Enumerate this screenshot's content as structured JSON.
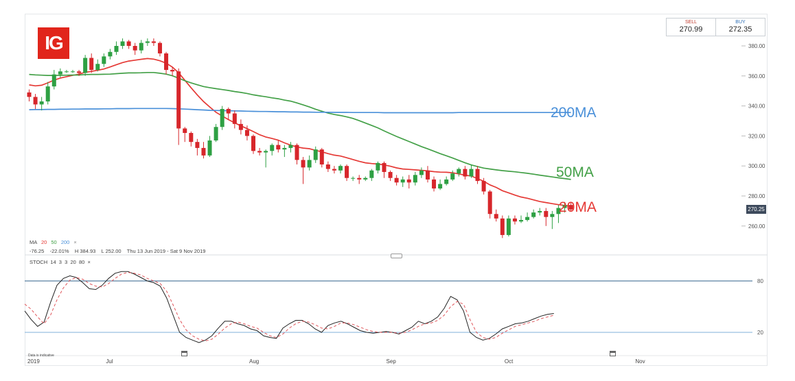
{
  "logo": {
    "text": "IG",
    "brand_color": "#e1251b"
  },
  "quote": {
    "sell_label": "SELL",
    "sell_value": "270.99",
    "buy_label": "BUY",
    "buy_value": "272.35",
    "sell_color": "#c0392b",
    "buy_color": "#2e6fb5"
  },
  "info": {
    "ma_prefix": "MA",
    "ma_periods": [
      "20",
      "50",
      "200"
    ],
    "ma_colors": [
      "#e53935",
      "#43a047",
      "#4a90d9"
    ],
    "close_icon": "close-icon",
    "stats": "-76.25    -22.01%    H 384.93    L 252.00    Thu 13 Jun 2019 - Sat 9 Nov 2019",
    "stoch_label": "STOCH  14  3  3  20  80  ×",
    "disclaimer": "Data is indicative"
  },
  "chart_data": [
    {
      "type": "candlestick",
      "title": "",
      "y_ticks": [
        "380.00",
        "360.00",
        "340.00",
        "320.00",
        "300.00",
        "280.00",
        "260.00"
      ],
      "y_tick_values": [
        380,
        360,
        340,
        320,
        300,
        280,
        260
      ],
      "ylim": [
        250,
        387
      ],
      "current_price": "270.25",
      "x_labels": [
        {
          "label": "2019",
          "index": 0
        },
        {
          "label": "Jul",
          "index": 13
        },
        {
          "label": "Aug",
          "index": 36
        },
        {
          "label": "Sep",
          "index": 58
        },
        {
          "label": "Oct",
          "index": 77
        },
        {
          "label": "Nov",
          "index": 98
        }
      ],
      "candles": [
        [
          349,
          346,
          351,
          343
        ],
        [
          346,
          341,
          348,
          338
        ],
        [
          341,
          343,
          346,
          337
        ],
        [
          343,
          353,
          356,
          341
        ],
        [
          353,
          361,
          364,
          351
        ],
        [
          361,
          363,
          365,
          359
        ],
        [
          363,
          363,
          364,
          362
        ],
        [
          363,
          363,
          364,
          362
        ],
        [
          363,
          362,
          364,
          360
        ],
        [
          362,
          372,
          374,
          360
        ],
        [
          372,
          364,
          375,
          362
        ],
        [
          364,
          368,
          371,
          363
        ],
        [
          368,
          373,
          375,
          366
        ],
        [
          373,
          376,
          378,
          371
        ],
        [
          376,
          380,
          383,
          374
        ],
        [
          380,
          383,
          385,
          378
        ],
        [
          383,
          380,
          384,
          378
        ],
        [
          380,
          377,
          382,
          374
        ],
        [
          377,
          382,
          384,
          375
        ],
        [
          382,
          383,
          385,
          380
        ],
        [
          383,
          382,
          385,
          380
        ],
        [
          382,
          375,
          383,
          373
        ],
        [
          375,
          364,
          376,
          361
        ],
        [
          364,
          363,
          366,
          360
        ],
        [
          363,
          325,
          365,
          314
        ],
        [
          325,
          322,
          326,
          316
        ],
        [
          322,
          316,
          323,
          313
        ],
        [
          316,
          312,
          318,
          307
        ],
        [
          312,
          307,
          316,
          305
        ],
        [
          307,
          317,
          320,
          306
        ],
        [
          317,
          326,
          328,
          316
        ],
        [
          326,
          338,
          340,
          324
        ],
        [
          338,
          335,
          339,
          331
        ],
        [
          335,
          328,
          337,
          325
        ],
        [
          328,
          324,
          331,
          321
        ],
        [
          324,
          320,
          327,
          317
        ],
        [
          320,
          310,
          321,
          308
        ],
        [
          310,
          309,
          312,
          307
        ],
        [
          309,
          310,
          311,
          299
        ],
        [
          310,
          314,
          315,
          307
        ],
        [
          314,
          311,
          317,
          309
        ],
        [
          311,
          312,
          314,
          306
        ],
        [
          312,
          314,
          316,
          309
        ],
        [
          314,
          304,
          315,
          301
        ],
        [
          304,
          299,
          306,
          288
        ],
        [
          299,
          304,
          307,
          297
        ],
        [
          304,
          311,
          313,
          302
        ],
        [
          311,
          301,
          312,
          299
        ],
        [
          301,
          298,
          303,
          296
        ],
        [
          298,
          297,
          300,
          295
        ],
        [
          297,
          300,
          301,
          295
        ],
        [
          300,
          292,
          301,
          290
        ],
        [
          292,
          292,
          293,
          290
        ],
        [
          292,
          291,
          294,
          288
        ],
        [
          291,
          292,
          293,
          290
        ],
        [
          292,
          297,
          298,
          290
        ],
        [
          297,
          302,
          303,
          295
        ],
        [
          302,
          296,
          303,
          292
        ],
        [
          296,
          292,
          297,
          290
        ],
        [
          292,
          289,
          294,
          287
        ],
        [
          289,
          291,
          293,
          286
        ],
        [
          291,
          289,
          294,
          285
        ],
        [
          289,
          294,
          296,
          287
        ],
        [
          294,
          297,
          299,
          292
        ],
        [
          297,
          291,
          300,
          289
        ],
        [
          291,
          285,
          293,
          283
        ],
        [
          285,
          288,
          291,
          284
        ],
        [
          288,
          291,
          293,
          287
        ],
        [
          291,
          295,
          297,
          290
        ],
        [
          295,
          298,
          299,
          293
        ],
        [
          298,
          293,
          300,
          291
        ],
        [
          293,
          298,
          301,
          292
        ],
        [
          298,
          290,
          300,
          288
        ],
        [
          290,
          283,
          292,
          281
        ],
        [
          283,
          268,
          284,
          265
        ],
        [
          268,
          265,
          271,
          263
        ],
        [
          265,
          254,
          267,
          252
        ],
        [
          254,
          265,
          267,
          253
        ],
        [
          265,
          263,
          267,
          261
        ],
        [
          263,
          264,
          267,
          262
        ],
        [
          264,
          266,
          269,
          263
        ],
        [
          266,
          269,
          271,
          265
        ],
        [
          269,
          270,
          272,
          267
        ],
        [
          270,
          266,
          272,
          260
        ],
        [
          266,
          268,
          270,
          258
        ],
        [
          268,
          272,
          274,
          262
        ],
        [
          272,
          274,
          276,
          269
        ],
        [
          274,
          271,
          276,
          270
        ]
      ],
      "series": [
        {
          "name": "20MA",
          "label": "20MA",
          "color": "#e53935",
          "values": [
            354,
            353.4,
            353.8,
            355.4,
            357.2,
            358.6,
            359.5,
            360.4,
            361.2,
            362.4,
            363,
            363.8,
            364.6,
            366,
            367.5,
            368.9,
            369.9,
            370.5,
            371.1,
            371.6,
            371.2,
            370.1,
            368.5,
            365.9,
            362.1,
            357.1,
            352.1,
            347.3,
            342.9,
            339.3,
            335.8,
            333.3,
            330.9,
            328.7,
            326.7,
            324.9,
            322.9,
            320.8,
            319.3,
            318.3,
            317.2,
            315.4,
            313.9,
            312.7,
            311.9,
            311.5,
            310.4,
            309.4,
            308.2,
            307.2,
            306.6,
            305.5,
            304.3,
            303.1,
            302.1,
            301.6,
            301.3,
            300.7,
            299.8,
            298.7,
            298,
            297.7,
            297.4,
            297.1,
            296.7,
            296.2,
            295.9,
            295.8,
            295.5,
            294.7,
            293.9,
            293.3,
            291.6,
            289.8,
            287.4,
            285.7,
            283.5,
            282.1,
            280.6,
            279.3,
            278.5,
            277.4,
            276.3,
            275.6,
            274.9,
            274.2,
            273.7,
            273.2
          ]
        },
        {
          "name": "50MA",
          "label": "50MA",
          "color": "#43a047",
          "values": [
            361,
            360.7,
            360.5,
            360.3,
            360.3,
            360.4,
            360.5,
            360.6,
            360.6,
            360.9,
            361,
            361,
            361.1,
            361.2,
            361.5,
            361.8,
            362,
            362,
            362.1,
            362.3,
            362.3,
            361.8,
            361.2,
            360.1,
            358.5,
            356.8,
            355.4,
            354.1,
            352.9,
            352.2,
            351.5,
            350.9,
            350.3,
            349.6,
            349,
            348.3,
            347.4,
            346.7,
            346.1,
            345.4,
            344.8,
            343.9,
            343.2,
            342,
            340.7,
            339.3,
            337.8,
            336.5,
            335.2,
            334.3,
            333.6,
            332.7,
            331.7,
            330.2,
            328.6,
            327,
            325.4,
            323.4,
            321.5,
            319.7,
            318,
            316.3,
            314.6,
            312.9,
            311.4,
            309.8,
            308.2,
            306.8,
            305.3,
            303.7,
            302.1,
            300.7,
            299.6,
            298.6,
            298,
            297.4,
            296.9,
            296.5,
            296.1,
            295.6,
            295.1,
            294.5,
            293.9,
            293.3,
            292.7,
            292.1,
            291.6,
            291
          ]
        },
        {
          "name": "200MA",
          "label": "200MA",
          "color": "#4a90d9",
          "values": [
            337.5,
            337.6,
            337.6,
            337.7,
            337.7,
            337.8,
            337.8,
            337.9,
            337.9,
            338,
            338,
            338,
            338.1,
            338.1,
            338.2,
            338.2,
            338.2,
            338.3,
            338.3,
            338.3,
            338.3,
            338.3,
            338.3,
            338.2,
            338.1,
            337.9,
            337.7,
            337.5,
            337.3,
            337.1,
            337,
            336.9,
            336.8,
            336.7,
            336.6,
            336.5,
            336.4,
            336.3,
            336.3,
            336.2,
            336.1,
            336.1,
            336,
            336,
            335.9,
            335.9,
            335.8,
            335.8,
            335.8,
            335.7,
            335.7,
            335.7,
            335.6,
            335.6,
            335.6,
            335.6,
            335.6,
            335.5,
            335.5,
            335.5,
            335.5,
            335.5,
            335.5,
            335.5,
            335.5,
            335.5,
            335.5,
            335.5,
            335.5,
            335.6,
            335.6,
            335.6,
            335.6,
            335.6,
            335.6,
            335.6,
            335.6,
            335.6,
            335.6,
            335.6,
            335.6,
            335.6,
            335.6,
            335.6,
            335.6,
            335.6,
            335.6,
            335.6
          ]
        }
      ]
    },
    {
      "type": "line",
      "title": "STOCH 14 3 3 20 80",
      "ylim": [
        0,
        100
      ],
      "levels": [
        {
          "value": 80,
          "label": "80",
          "color": "#2c5f8a"
        },
        {
          "value": 20,
          "label": "20",
          "color": "#7fb2d9"
        }
      ],
      "series": [
        {
          "name": "%K",
          "color": "#222222",
          "values": [
            45,
            35,
            27,
            32,
            55,
            75,
            83,
            86,
            84,
            78,
            71,
            70,
            75,
            83,
            89,
            91,
            91,
            88,
            84,
            80,
            78,
            74,
            60,
            40,
            20,
            14,
            11,
            8,
            11,
            16,
            25,
            33,
            33,
            30,
            28,
            24,
            22,
            16,
            14,
            13,
            25,
            30,
            34,
            34,
            30,
            24,
            20,
            28,
            31,
            33,
            30,
            26,
            22,
            20,
            19,
            20,
            21,
            20,
            18,
            22,
            26,
            33,
            30,
            33,
            38,
            48,
            62,
            58,
            45,
            20,
            14,
            11,
            13,
            18,
            24,
            27,
            30,
            31,
            33,
            36,
            39,
            41,
            42
          ]
        },
        {
          "name": "%D",
          "color": "#e0555a",
          "dashed": true,
          "values": [
            53,
            47,
            38,
            30,
            40,
            58,
            72,
            81,
            84,
            82,
            77,
            74,
            73,
            77,
            83,
            88,
            90,
            89,
            87,
            83,
            80,
            77,
            68,
            52,
            35,
            23,
            16,
            12,
            10,
            12,
            18,
            25,
            30,
            32,
            30,
            27,
            25,
            20,
            16,
            14,
            18,
            25,
            30,
            33,
            32,
            29,
            25,
            24,
            27,
            31,
            31,
            29,
            26,
            23,
            21,
            20,
            20,
            20,
            19,
            20,
            23,
            27,
            30,
            31,
            34,
            40,
            50,
            56,
            53,
            35,
            20,
            14,
            12,
            14,
            19,
            23,
            27,
            29,
            31,
            33,
            36,
            38,
            40
          ]
        }
      ]
    }
  ]
}
